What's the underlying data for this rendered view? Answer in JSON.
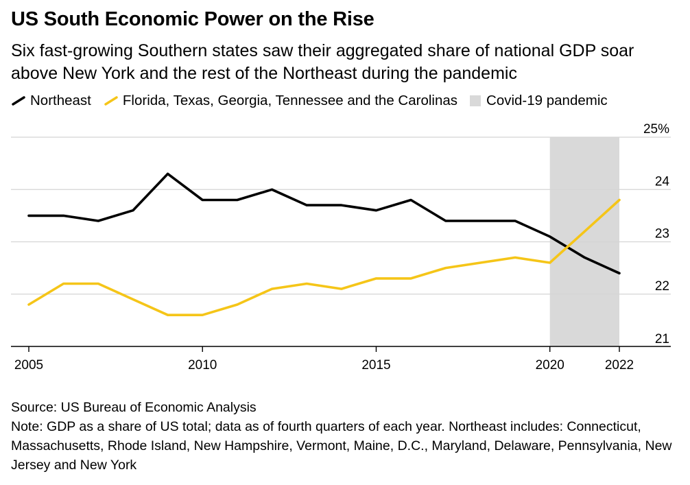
{
  "title": "US South Economic Power on the Rise",
  "subtitle": "Six fast-growing Southern states saw their aggregated share of national GDP soar above New York and the rest of the Northeast during the pandemic",
  "legend": {
    "northeast": "Northeast",
    "south": "Florida, Texas, Georgia, Tennessee and the Carolinas",
    "pandemic": "Covid-19 pandemic"
  },
  "colors": {
    "northeast": "#000000",
    "south": "#f5c518",
    "pandemic": "#d9d9d9",
    "grid": "#d4d4d4"
  },
  "source": "Source: US Bureau of Economic Analysis",
  "note": "Note: GDP as a share of US total; data as of fourth quarters of each year. Northeast includes: Connecticut, Massachusetts, Rhode Island, New Hampshire, Vermont, Maine, D.C., Maryland, Delaware, Pennsylvania, New Jersey and New York",
  "chart_data": {
    "type": "line",
    "x": [
      2005,
      2006,
      2007,
      2008,
      2009,
      2010,
      2011,
      2012,
      2013,
      2014,
      2015,
      2016,
      2017,
      2018,
      2019,
      2020,
      2021,
      2022
    ],
    "series": [
      {
        "name": "Northeast",
        "color": "#000000",
        "values": [
          23.5,
          23.5,
          23.4,
          23.6,
          24.3,
          23.8,
          23.8,
          24.0,
          23.7,
          23.7,
          23.6,
          23.8,
          23.4,
          23.4,
          23.4,
          23.1,
          22.7,
          22.4
        ]
      },
      {
        "name": "Florida, Texas, Georgia, Tennessee and the Carolinas",
        "color": "#f5c518",
        "values": [
          21.8,
          22.2,
          22.2,
          21.9,
          21.6,
          21.6,
          21.8,
          22.1,
          22.2,
          22.1,
          22.3,
          22.3,
          22.5,
          22.6,
          22.7,
          22.6,
          23.2,
          23.8
        ]
      }
    ],
    "shaded_region": {
      "label": "Covid-19 pandemic",
      "x_start": 2020,
      "x_end": 2022
    },
    "xlim": [
      2004.5,
      2024
    ],
    "ylim": [
      21,
      25
    ],
    "yticks": [
      21,
      22,
      23,
      24,
      25
    ],
    "ytick_labels": [
      "21",
      "22",
      "23",
      "24",
      "25%"
    ],
    "xticks": [
      2005,
      2010,
      2015,
      2020,
      2022
    ],
    "xtick_labels": [
      "2005",
      "2010",
      "2015",
      "2020",
      "2022"
    ],
    "grid": "horizontal"
  }
}
